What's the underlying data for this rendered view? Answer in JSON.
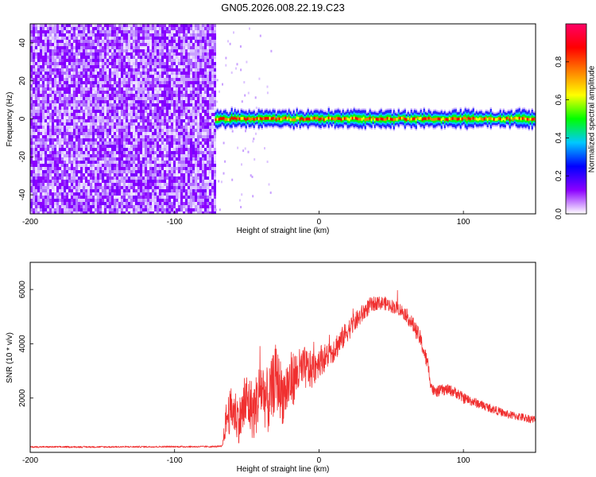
{
  "title": "GN05.2026.008.22.19.C23",
  "chart_data": [
    {
      "type": "heatmap",
      "xlabel": "Height of straight line (km)",
      "ylabel": "Frequency (Hz)",
      "xlim": [
        -200,
        150
      ],
      "ylim": [
        -50,
        50
      ],
      "xticks": [
        "-200",
        "-100",
        "0",
        "100"
      ],
      "xtick_values": [
        -200,
        -100,
        0,
        100
      ],
      "yticks": [
        "-40",
        "-20",
        "0",
        "20",
        "40"
      ],
      "ytick_values": [
        -40,
        -20,
        0,
        20,
        40
      ],
      "noise_region": [
        -200,
        -72
      ],
      "signal_band": {
        "start": -72,
        "end": 150,
        "center_hz": 0,
        "halfwidth_hz": 4
      },
      "colorbar": {
        "label": "Normalized spectral amplitude",
        "range": [
          0.0,
          1.0
        ],
        "ticks": [
          "0.0",
          "0.2",
          "0.4",
          "0.6",
          "0.8"
        ],
        "tick_values": [
          0.0,
          0.2,
          0.4,
          0.6,
          0.8
        ],
        "stops": [
          "#ffffff",
          "#8b00ff",
          "#0000ff",
          "#00c8ff",
          "#00ff00",
          "#ffff00",
          "#ff8000",
          "#ff0000",
          "#ff0066"
        ]
      }
    },
    {
      "type": "line",
      "xlabel": "Height of straight line (km)",
      "ylabel": "SNR (10 * v/v)",
      "xlim": [
        -200,
        150
      ],
      "ylim": [
        0,
        7000
      ],
      "xticks": [
        "-200",
        "-100",
        "0",
        "100"
      ],
      "xtick_values": [
        -200,
        -100,
        0,
        100
      ],
      "yticks": [
        "2000",
        "4000",
        "6000"
      ],
      "ytick_values": [
        2000,
        4000,
        6000
      ],
      "color": "#f03030",
      "series": [
        {
          "name": "SNR",
          "x": [
            -200,
            -150,
            -100,
            -75,
            -67,
            -64,
            -60,
            -55,
            -50,
            -45,
            -40,
            -35,
            -30,
            -25,
            -20,
            -15,
            -10,
            -5,
            0,
            5,
            10,
            15,
            20,
            25,
            30,
            35,
            40,
            45,
            50,
            55,
            60,
            65,
            70,
            75,
            78,
            80,
            85,
            90,
            95,
            100,
            105,
            110,
            115,
            120,
            125,
            130,
            135,
            140,
            145,
            150
          ],
          "y": [
            200,
            200,
            210,
            210,
            220,
            1300,
            1600,
            1200,
            1900,
            1500,
            2400,
            1800,
            2800,
            2100,
            2600,
            2900,
            3100,
            3000,
            3400,
            3500,
            3800,
            4100,
            4500,
            4800,
            5100,
            5400,
            5500,
            5500,
            5400,
            5300,
            5100,
            4700,
            4200,
            3300,
            2400,
            2200,
            2300,
            2300,
            2200,
            2000,
            1900,
            1800,
            1700,
            1600,
            1500,
            1400,
            1350,
            1300,
            1250,
            1200
          ]
        }
      ],
      "noise_amplitude": [
        30,
        30,
        30,
        30,
        30,
        700,
        900,
        900,
        1100,
        1100,
        1200,
        1200,
        1200,
        1100,
        1100,
        900,
        800,
        700,
        600,
        500,
        500,
        450,
        400,
        350,
        350,
        300,
        250,
        250,
        250,
        250,
        250,
        300,
        300,
        300,
        250,
        200,
        200,
        200,
        200,
        200,
        180,
        170,
        160,
        160,
        150,
        150,
        150,
        150,
        150,
        150
      ]
    }
  ]
}
